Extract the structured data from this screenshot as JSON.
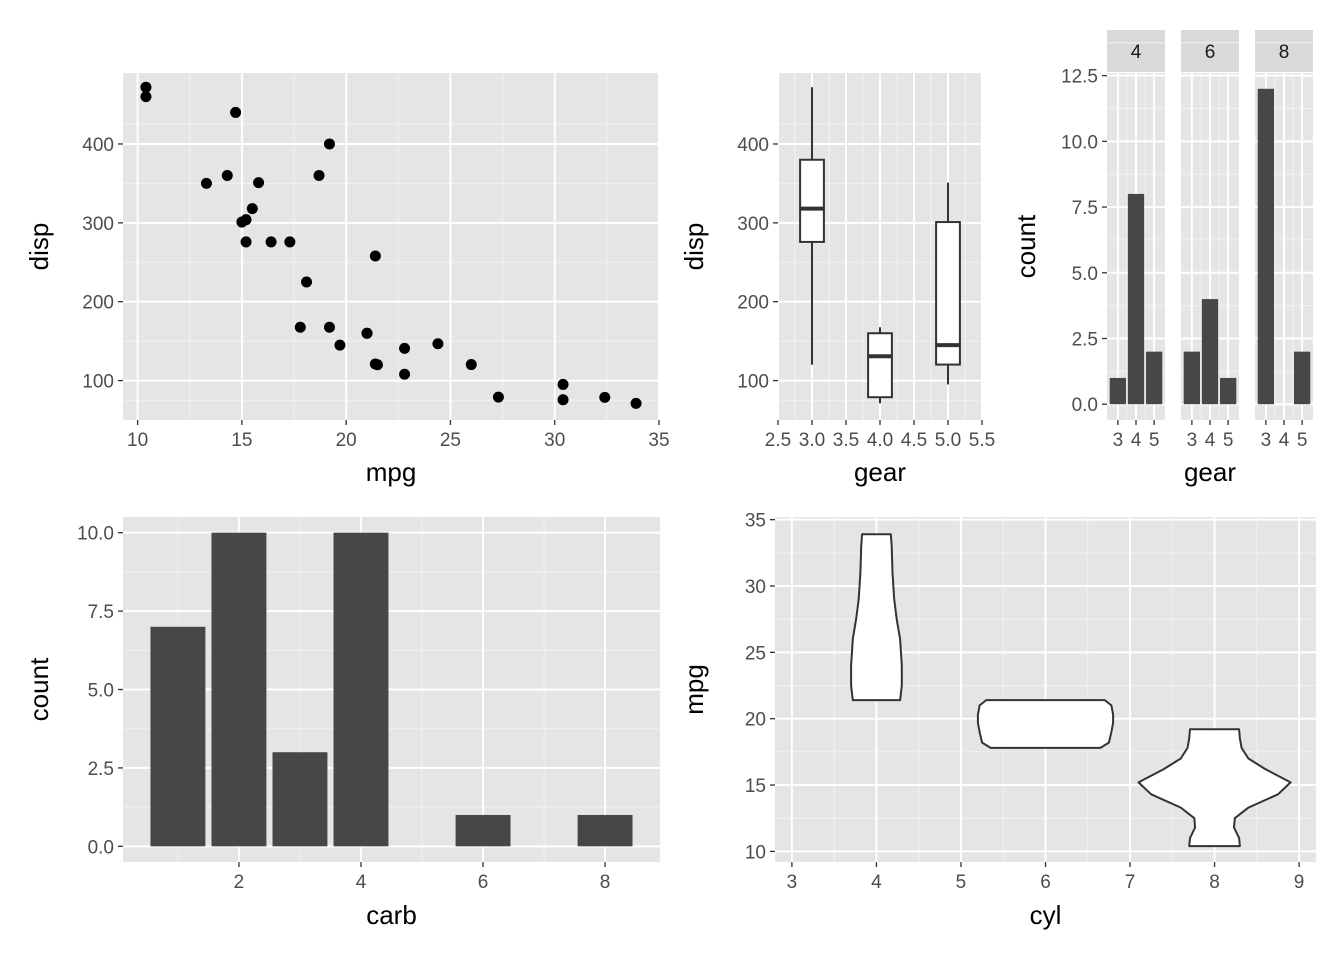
{
  "colors": {
    "panel_bg": "#e5e5e5",
    "grid_major": "#ffffff",
    "grid_minor": "#f2f2f2",
    "bar_fill": "#474747",
    "point": "#000000",
    "strip_bg": "#d9d9d9",
    "tick_text": "#4d4d4d",
    "tick_mark": "#333333"
  },
  "chart_data": [
    {
      "id": "scatter",
      "type": "scatter",
      "title": "",
      "xlabel": "mpg",
      "ylabel": "disp",
      "xlim": [
        9.3,
        35.0
      ],
      "ylim": [
        50,
        490
      ],
      "xticks": [
        10,
        15,
        20,
        25,
        30,
        35
      ],
      "xtick_labels": [
        "10",
        "15",
        "20",
        "25",
        "30",
        "35"
      ],
      "yticks": [
        100,
        200,
        300,
        400
      ],
      "ytick_labels": [
        "100",
        "200",
        "300",
        "400"
      ],
      "points": [
        [
          21.0,
          160
        ],
        [
          21.0,
          160
        ],
        [
          22.8,
          108
        ],
        [
          21.4,
          258
        ],
        [
          18.7,
          360
        ],
        [
          18.1,
          225
        ],
        [
          14.3,
          360
        ],
        [
          24.4,
          146.7
        ],
        [
          22.8,
          140.8
        ],
        [
          19.2,
          167.6
        ],
        [
          17.8,
          167.6
        ],
        [
          16.4,
          275.8
        ],
        [
          17.3,
          275.8
        ],
        [
          15.2,
          275.8
        ],
        [
          10.4,
          472
        ],
        [
          10.4,
          460
        ],
        [
          14.7,
          440
        ],
        [
          32.4,
          78.7
        ],
        [
          30.4,
          75.7
        ],
        [
          33.9,
          71.1
        ],
        [
          21.5,
          120.1
        ],
        [
          15.5,
          318
        ],
        [
          15.2,
          304
        ],
        [
          13.3,
          350
        ],
        [
          19.2,
          400
        ],
        [
          27.3,
          79
        ],
        [
          26.0,
          120.3
        ],
        [
          30.4,
          95.1
        ],
        [
          15.8,
          351
        ],
        [
          19.7,
          145
        ],
        [
          15.0,
          301
        ],
        [
          21.4,
          121
        ]
      ]
    },
    {
      "id": "boxplot",
      "type": "box",
      "title": "",
      "xlabel": "gear",
      "ylabel": "disp",
      "xlim": [
        2.5,
        5.5
      ],
      "ylim": [
        50,
        490
      ],
      "xticks": [
        2.5,
        3.0,
        3.5,
        4.0,
        4.5,
        5.0,
        5.5
      ],
      "xtick_labels": [
        "2.5",
        "3.0",
        "3.5",
        "4.0",
        "4.5",
        "5.0",
        "5.5"
      ],
      "yticks": [
        100,
        200,
        300,
        400
      ],
      "ytick_labels": [
        "100",
        "200",
        "300",
        "400"
      ],
      "boxes": [
        {
          "x": 3,
          "ymin": 120.1,
          "q1": 275.8,
          "median": 318,
          "q3": 380,
          "ymax": 472
        },
        {
          "x": 4,
          "ymin": 71.1,
          "q1": 78.9,
          "median": 130.9,
          "q3": 160,
          "ymax": 167.6
        },
        {
          "x": 5,
          "ymin": 95.1,
          "q1": 120.3,
          "median": 145,
          "q3": 301,
          "ymax": 351
        }
      ]
    },
    {
      "id": "faceted-bars",
      "type": "bar",
      "title": "",
      "xlabel": "gear",
      "ylabel": "count",
      "ylim": [
        -0.6,
        12.6
      ],
      "yticks": [
        0,
        2.5,
        5,
        7.5,
        10,
        12.5
      ],
      "ytick_labels": [
        "0.0",
        "2.5",
        "5.0",
        "7.5",
        "10.0",
        "12.5"
      ],
      "categories": [
        "3",
        "4",
        "5"
      ],
      "facets": [
        {
          "strip": "4",
          "values": [
            1,
            8,
            2
          ]
        },
        {
          "strip": "6",
          "values": [
            2,
            4,
            1
          ]
        },
        {
          "strip": "8",
          "values": [
            12,
            0,
            2
          ]
        }
      ]
    },
    {
      "id": "carb-bars",
      "type": "bar",
      "title": "",
      "xlabel": "carb",
      "ylabel": "count",
      "xlim": [
        0.1,
        8.9
      ],
      "ylim": [
        -0.5,
        10.5
      ],
      "xticks": [
        2,
        4,
        6,
        8
      ],
      "xtick_labels": [
        "2",
        "4",
        "6",
        "8"
      ],
      "yticks": [
        0,
        2.5,
        5,
        7.5,
        10
      ],
      "ytick_labels": [
        "0.0",
        "2.5",
        "5.0",
        "7.5",
        "10.0"
      ],
      "bars": [
        [
          1,
          7
        ],
        [
          2,
          10
        ],
        [
          3,
          3
        ],
        [
          4,
          10
        ],
        [
          6,
          1
        ],
        [
          8,
          1
        ]
      ]
    },
    {
      "id": "violin",
      "type": "violin",
      "title": "",
      "xlabel": "cyl",
      "ylabel": "mpg",
      "xlim": [
        2.8,
        9.2
      ],
      "ylim": [
        9.2,
        35.2
      ],
      "xticks": [
        3,
        4,
        5,
        6,
        7,
        8,
        9
      ],
      "xtick_labels": [
        "3",
        "4",
        "5",
        "6",
        "7",
        "8",
        "9"
      ],
      "yticks": [
        10,
        15,
        20,
        25,
        30,
        35
      ],
      "ytick_labels": [
        "10",
        "15",
        "20",
        "25",
        "30",
        "35"
      ],
      "violins": [
        {
          "x": 4,
          "profile": [
            [
              21.4,
              0.28
            ],
            [
              22.5,
              0.3
            ],
            [
              24.0,
              0.3
            ],
            [
              26.0,
              0.28
            ],
            [
              27.5,
              0.24
            ],
            [
              29.0,
              0.21
            ],
            [
              31.0,
              0.19
            ],
            [
              33.0,
              0.18
            ],
            [
              33.9,
              0.17
            ]
          ]
        },
        {
          "x": 6,
          "profile": [
            [
              17.8,
              0.65
            ],
            [
              18.2,
              0.75
            ],
            [
              19.0,
              0.78
            ],
            [
              19.7,
              0.8
            ],
            [
              20.3,
              0.8
            ],
            [
              21.0,
              0.78
            ],
            [
              21.4,
              0.7
            ]
          ]
        },
        {
          "x": 8,
          "profile": [
            [
              10.4,
              0.3
            ],
            [
              11.0,
              0.29
            ],
            [
              11.8,
              0.23
            ],
            [
              12.5,
              0.24
            ],
            [
              13.3,
              0.4
            ],
            [
              14.3,
              0.75
            ],
            [
              15.2,
              0.9
            ],
            [
              16.2,
              0.6
            ],
            [
              17.0,
              0.4
            ],
            [
              17.8,
              0.32
            ],
            [
              18.5,
              0.3
            ],
            [
              19.2,
              0.29
            ]
          ]
        }
      ]
    }
  ]
}
